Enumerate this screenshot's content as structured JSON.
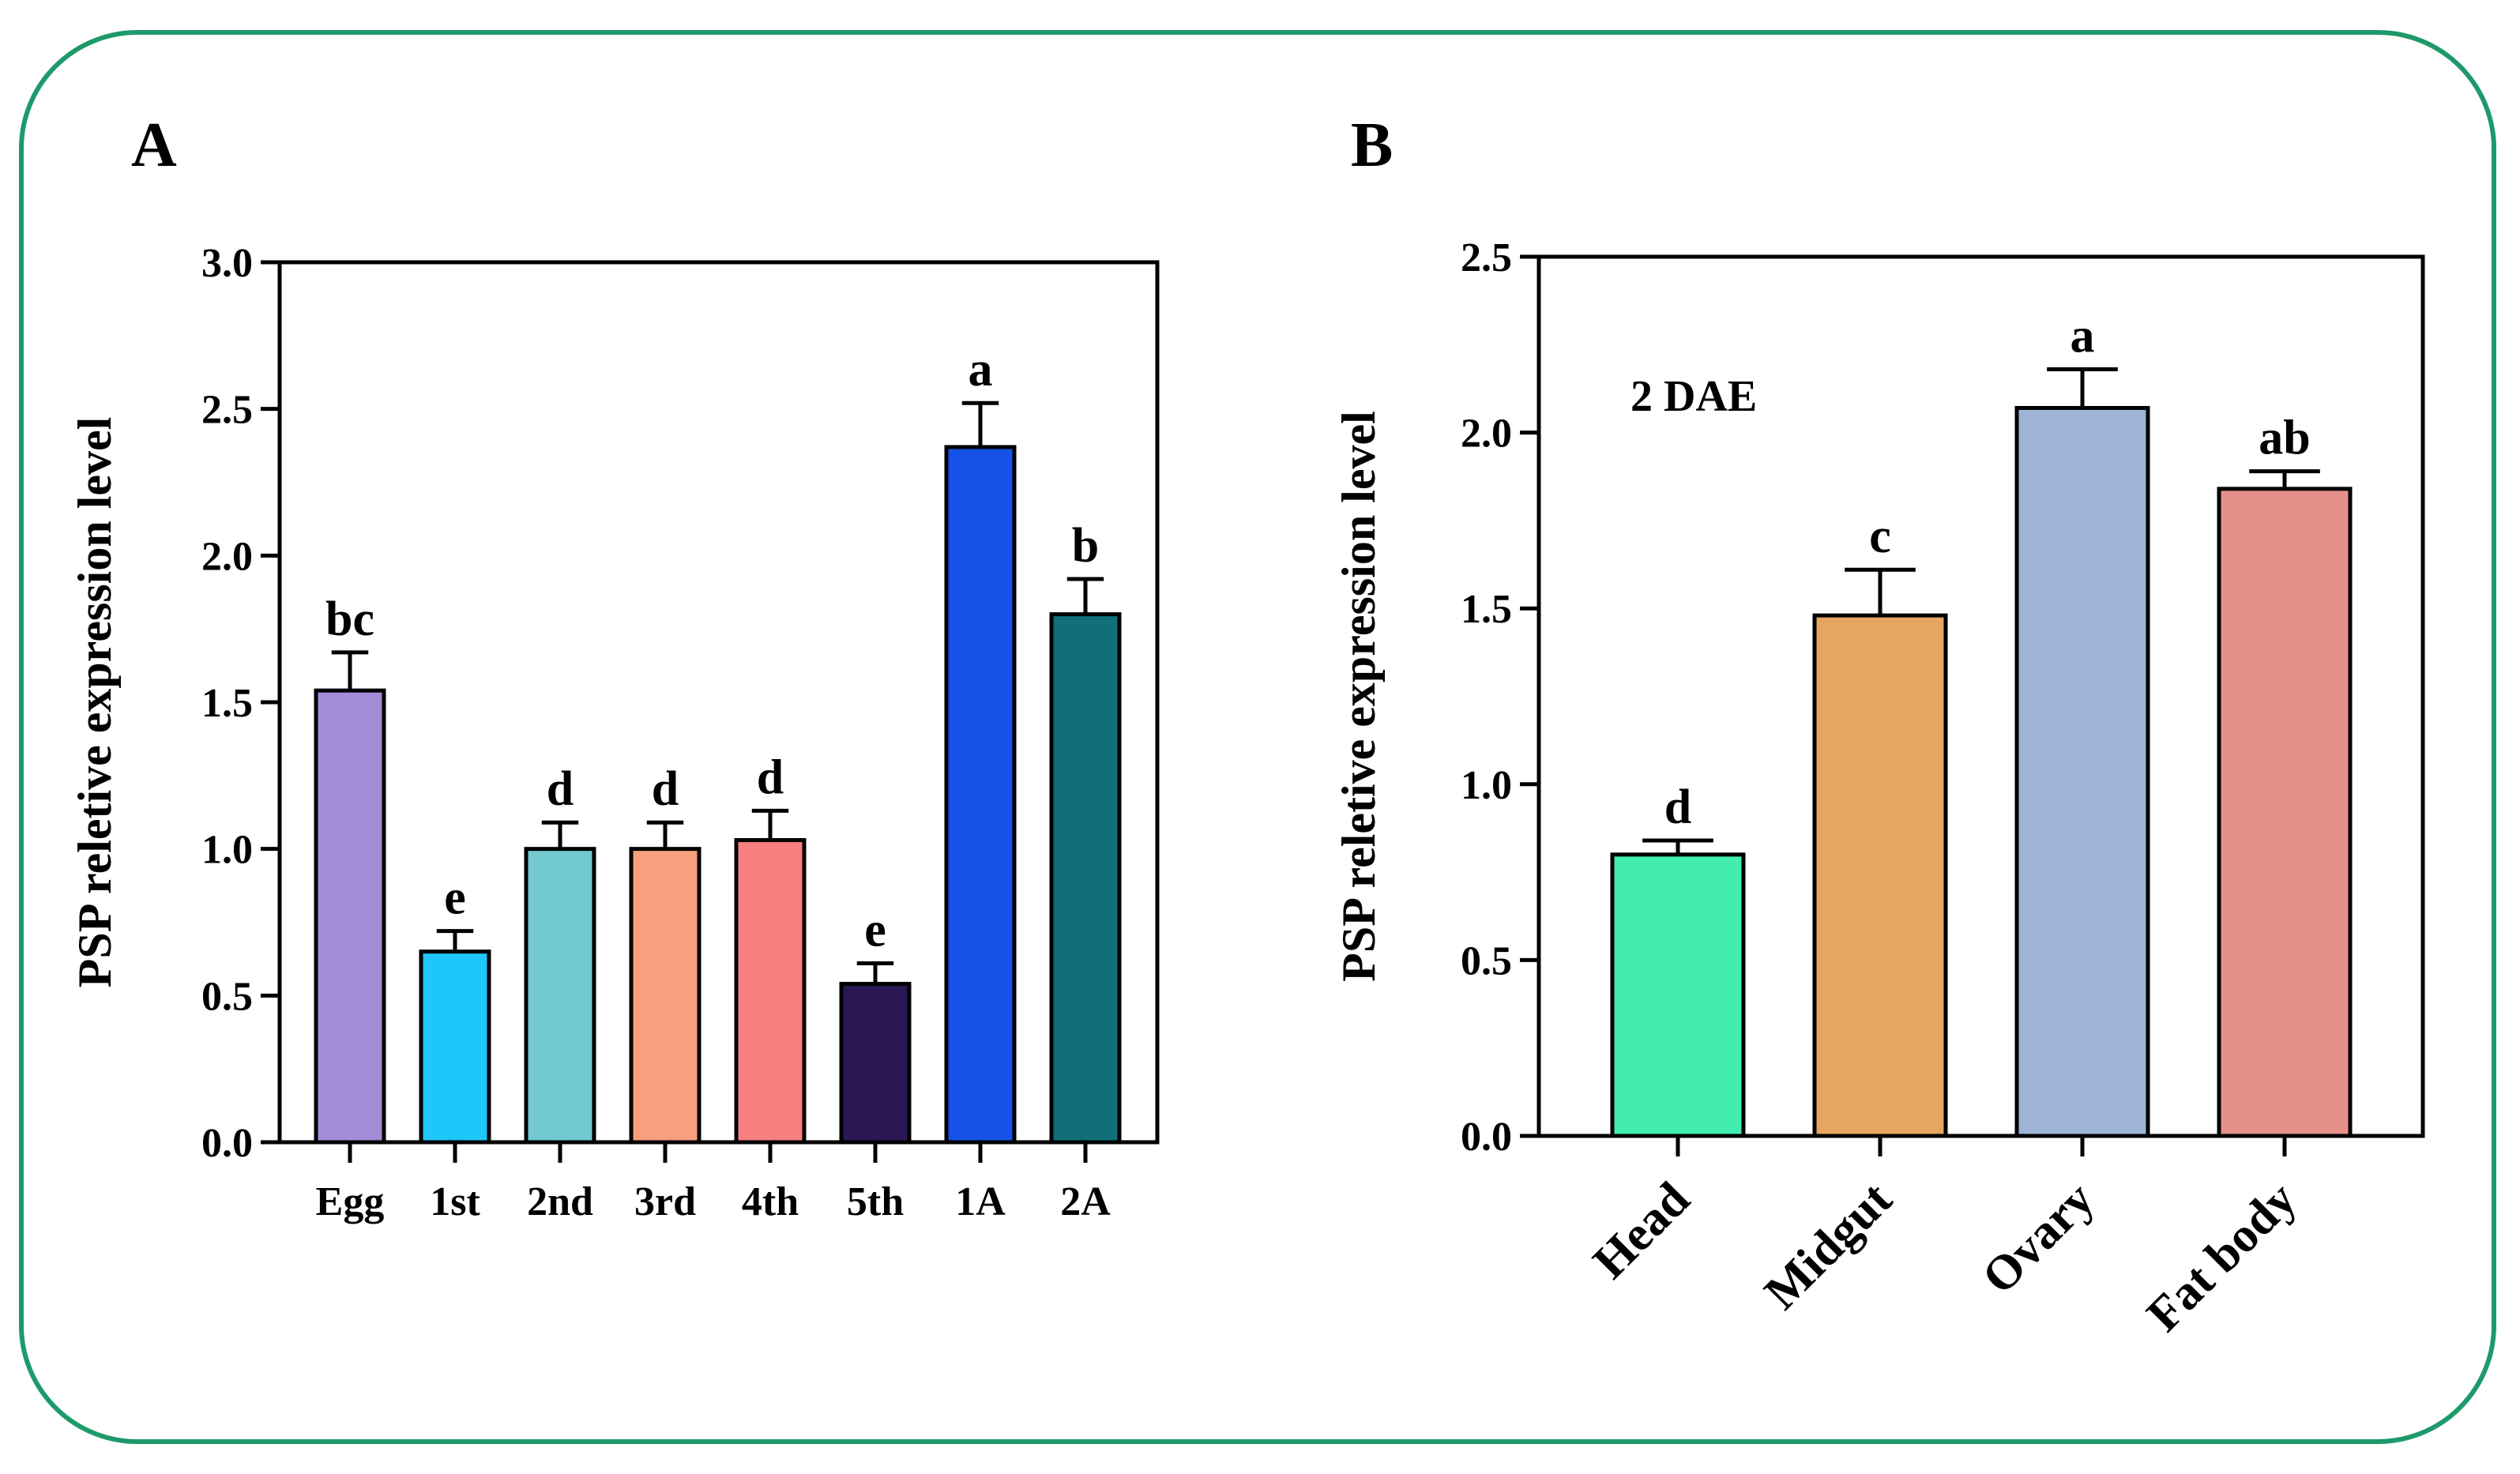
{
  "chart_data": [
    {
      "panel": "A",
      "type": "bar",
      "ylabel": "PSP reletive expression level",
      "xlabel": "",
      "ylim": [
        0,
        3.0
      ],
      "yticks": [
        "0.0",
        "0.5",
        "1.0",
        "1.5",
        "2.0",
        "2.5",
        "3.0"
      ],
      "categories": [
        "Egg",
        "1st",
        "2nd",
        "3rd",
        "4th",
        "5th",
        "1A",
        "2A"
      ],
      "values": [
        1.54,
        0.65,
        1.0,
        1.0,
        1.03,
        0.54,
        2.37,
        1.8
      ],
      "errors": [
        0.13,
        0.07,
        0.09,
        0.09,
        0.1,
        0.07,
        0.15,
        0.12
      ],
      "significance": [
        "bc",
        "e",
        "d",
        "d",
        "d",
        "e",
        "a",
        "b"
      ],
      "colors": [
        "#a48cd6",
        "#1ec6fa",
        "#72c9d0",
        "#f8a07e",
        "#f77f7f",
        "#2b1754",
        "#1652e8",
        "#106f79"
      ]
    },
    {
      "panel": "B",
      "type": "bar",
      "ylabel": "PSP reletive expression level",
      "xlabel": "",
      "annotation": "2 DAE",
      "ylim": [
        0,
        2.5
      ],
      "yticks": [
        "0.0",
        "0.5",
        "1.0",
        "1.5",
        "2.0",
        "2.5"
      ],
      "categories": [
        "Head",
        "Midgut",
        "Ovary",
        "Fat body"
      ],
      "values": [
        0.8,
        1.48,
        2.07,
        1.84
      ],
      "errors": [
        0.04,
        0.13,
        0.11,
        0.05
      ],
      "significance": [
        "d",
        "c",
        "a",
        "ab"
      ],
      "colors": [
        "#42edaf",
        "#e6a661",
        "#9db4d4",
        "#e5918a"
      ]
    }
  ]
}
